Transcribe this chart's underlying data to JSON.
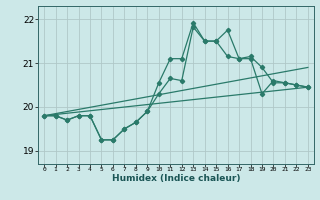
{
  "xlabel": "Humidex (Indice chaleur)",
  "ylabel": "",
  "bg_color": "#cce8e8",
  "grid_color": "#b0c8c8",
  "line_color": "#2a7a6a",
  "ylim": [
    18.7,
    22.3
  ],
  "xlim": [
    -0.5,
    23.5
  ],
  "yticks": [
    19,
    20,
    21,
    22
  ],
  "xticks": [
    0,
    1,
    2,
    3,
    4,
    5,
    6,
    7,
    8,
    9,
    10,
    11,
    12,
    13,
    14,
    15,
    16,
    17,
    18,
    19,
    20,
    21,
    22,
    23
  ],
  "curve1_x": [
    0,
    1,
    2,
    3,
    4,
    5,
    6,
    7,
    8,
    9,
    10,
    11,
    12,
    13,
    14,
    15,
    16,
    17,
    18,
    19,
    20,
    21,
    22,
    23
  ],
  "curve1_y": [
    19.8,
    19.8,
    19.7,
    19.8,
    19.8,
    19.25,
    19.25,
    19.5,
    19.65,
    19.9,
    20.55,
    21.1,
    21.1,
    21.92,
    21.5,
    21.5,
    21.75,
    21.1,
    21.15,
    20.9,
    20.55,
    20.55,
    20.5,
    20.45
  ],
  "curve2_x": [
    0,
    1,
    2,
    3,
    4,
    5,
    6,
    7,
    8,
    9,
    10,
    11,
    12,
    13,
    14,
    15,
    16,
    17,
    18,
    19,
    20,
    21,
    22,
    23
  ],
  "curve2_y": [
    19.8,
    19.8,
    19.7,
    19.8,
    19.8,
    19.25,
    19.25,
    19.5,
    19.65,
    19.9,
    20.3,
    20.65,
    20.6,
    21.82,
    21.5,
    21.5,
    21.15,
    21.1,
    21.1,
    20.3,
    20.6,
    20.55,
    20.5,
    20.45
  ],
  "curve3_x": [
    0,
    23
  ],
  "curve3_y": [
    19.8,
    20.9
  ],
  "curve4_x": [
    0,
    23
  ],
  "curve4_y": [
    19.8,
    20.45
  ]
}
